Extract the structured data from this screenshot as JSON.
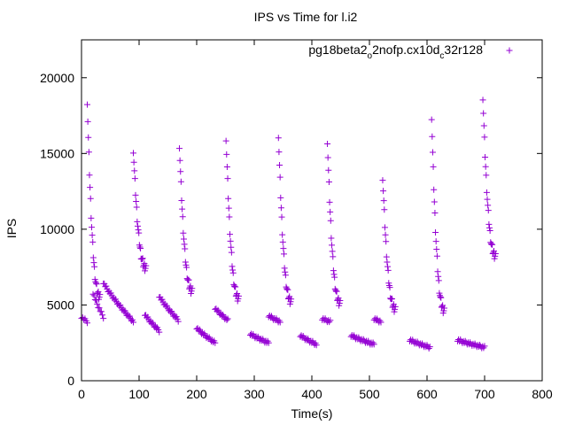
{
  "chart_data": {
    "type": "scatter",
    "title": "IPS vs Time for l.i2",
    "xlabel": "Time(s)",
    "ylabel": "IPS",
    "xlim": [
      0,
      800
    ],
    "ylim": [
      0,
      22500
    ],
    "xticks": [
      0,
      100,
      200,
      300,
      400,
      500,
      600,
      700,
      800
    ],
    "yticks": [
      0,
      5000,
      10000,
      15000,
      20000
    ],
    "xtick_labels": [
      "0",
      "100",
      "200",
      "300",
      "400",
      "500",
      "600",
      "700",
      "800"
    ],
    "ytick_labels": [
      "0",
      "5000",
      "10000",
      "15000",
      "20000"
    ],
    "grid": false,
    "legend_position": "top-right",
    "legend": {
      "base": "pg18beta2",
      "sub1": "o",
      "mid": "2nofp.cx10d",
      "sub2": "c",
      "tail": "32r128"
    },
    "marker": "plus",
    "series": [
      {
        "name": "pg18beta2_o2nofp.cx10d_c32r128",
        "color": "#9400d3",
        "bursts": [
          {
            "t": 10,
            "peak": 18500,
            "end": 5600
          },
          {
            "t": 90,
            "peak": 15300,
            "end": 7500
          },
          {
            "t": 170,
            "peak": 15600,
            "end": 6000
          },
          {
            "t": 251,
            "peak": 16100,
            "end": 5500
          },
          {
            "t": 342,
            "peak": 16300,
            "end": 5300
          },
          {
            "t": 427,
            "peak": 15900,
            "end": 5200
          },
          {
            "t": 523,
            "peak": 13500,
            "end": 4800
          },
          {
            "t": 608,
            "peak": 17500,
            "end": 4700
          },
          {
            "t": 697,
            "peak": 18800,
            "end": 8300
          }
        ],
        "floors": [
          {
            "start": 0,
            "end": 10,
            "from": 4200,
            "to": 3900
          },
          {
            "start": 20,
            "end": 38,
            "from": 5800,
            "to": 4200
          },
          {
            "start": 38,
            "end": 90,
            "from": 6500,
            "to": 3900
          },
          {
            "start": 110,
            "end": 135,
            "from": 4400,
            "to": 3300
          },
          {
            "start": 135,
            "end": 168,
            "from": 5600,
            "to": 4000
          },
          {
            "start": 200,
            "end": 232,
            "from": 3500,
            "to": 2500
          },
          {
            "start": 232,
            "end": 254,
            "from": 4800,
            "to": 4000
          },
          {
            "start": 293,
            "end": 325,
            "from": 3100,
            "to": 2500
          },
          {
            "start": 325,
            "end": 345,
            "from": 4300,
            "to": 3900
          },
          {
            "start": 380,
            "end": 408,
            "from": 3000,
            "to": 2400
          },
          {
            "start": 418,
            "end": 432,
            "from": 4100,
            "to": 3900
          },
          {
            "start": 468,
            "end": 508,
            "from": 3000,
            "to": 2400
          },
          {
            "start": 508,
            "end": 520,
            "from": 4100,
            "to": 3900
          },
          {
            "start": 570,
            "end": 605,
            "from": 2700,
            "to": 2200
          },
          {
            "start": 653,
            "end": 700,
            "from": 2700,
            "to": 2200
          }
        ]
      }
    ]
  }
}
